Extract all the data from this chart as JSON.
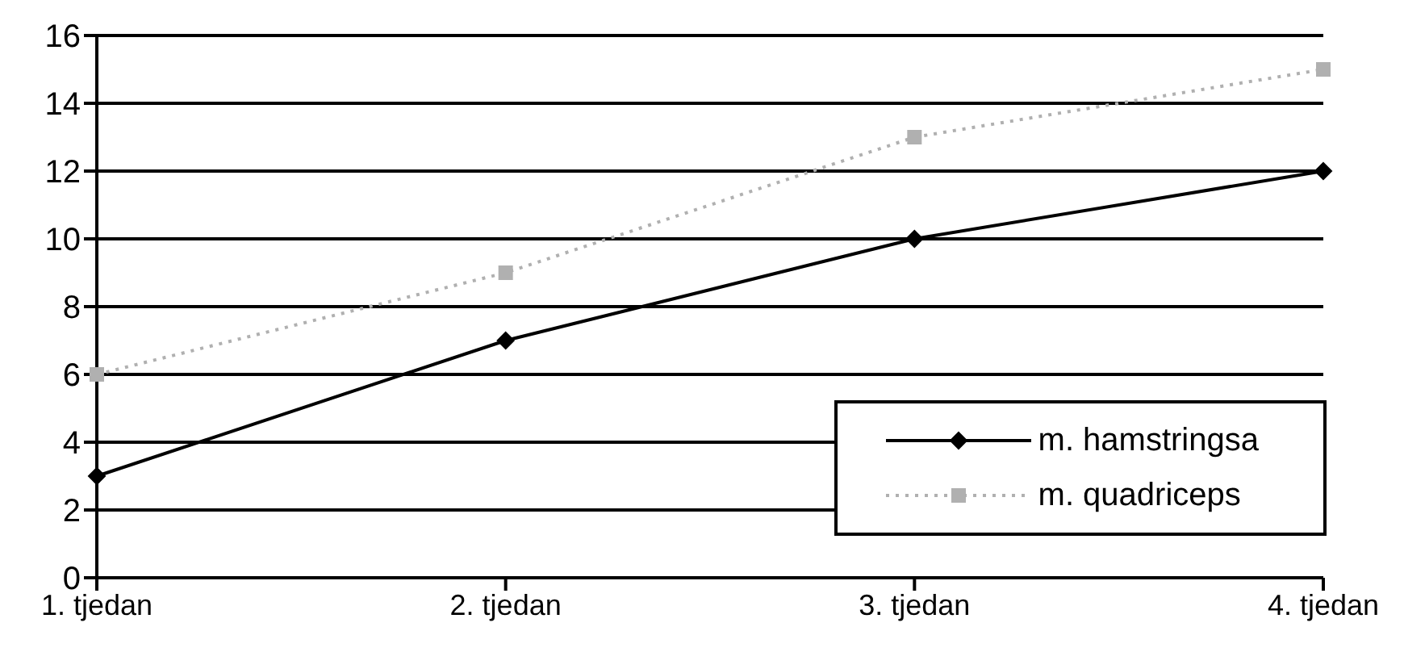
{
  "chart_data": {
    "type": "line",
    "categories": [
      "1. tjedan",
      "2. tjedan",
      "3. tjedan",
      "4. tjedan"
    ],
    "series": [
      {
        "name": "m. hamstringsa",
        "color": "#000000",
        "values": [
          3,
          7,
          10,
          12
        ],
        "marker": "diamond",
        "line_style": "solid"
      },
      {
        "name": "m. quadriceps",
        "color": "#b0b0b0",
        "values": [
          6,
          9,
          13,
          15
        ],
        "marker": "square",
        "line_style": "dotted"
      }
    ],
    "ylim": [
      0,
      16
    ],
    "yticks": [
      0,
      2,
      4,
      6,
      8,
      10,
      12,
      14,
      16
    ],
    "grid": "y",
    "legend": "bottom right"
  }
}
